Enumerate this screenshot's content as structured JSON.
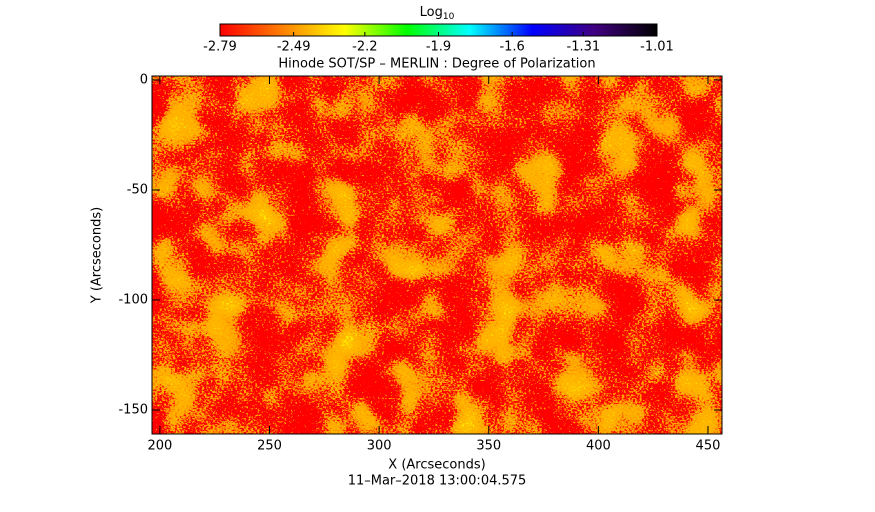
{
  "chart_data": {
    "type": "heatmap",
    "title": "Hinode SOT/SP – MERLIN : Degree of Polarization",
    "colorbar_label": {
      "text": "Log",
      "subscript": "10"
    },
    "clim": [
      -2.79,
      -1.01
    ],
    "cticks": [
      -2.79,
      -2.49,
      -2.2,
      -1.9,
      -1.6,
      -1.31,
      -1.01
    ],
    "colormap": [
      "#ff0000",
      "#ff8000",
      "#ffff00",
      "#00ff00",
      "#00ffff",
      "#0000ff",
      "#400080",
      "#000000"
    ],
    "x_label": "X (Arcseconds)",
    "y_label": "Y (Arcseconds)",
    "date": "11–Mar–2018 13:00:04.575",
    "xlim": [
      196.4,
      456.4
    ],
    "ylim": [
      -160.9,
      1.8
    ],
    "xticks": [
      200,
      250,
      300,
      350,
      400,
      450
    ],
    "yticks": [
      0,
      -50,
      -100,
      -150
    ]
  }
}
